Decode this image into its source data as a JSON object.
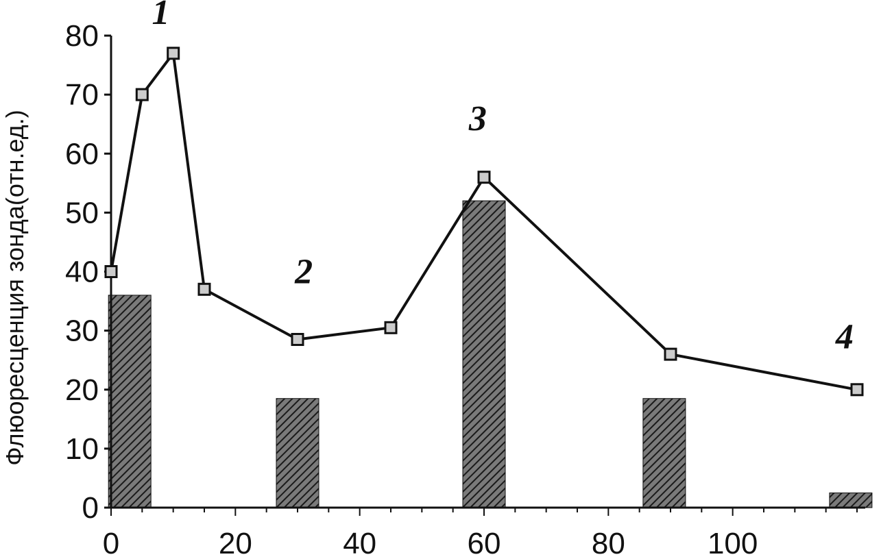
{
  "chart_data": {
    "type": "bar",
    "title": "",
    "xlabel": "",
    "ylabel": "Флюоресценция зонда(отн.ед.)",
    "xlim": [
      0,
      120
    ],
    "ylim": [
      0,
      80
    ],
    "x_ticks": [
      0,
      20,
      40,
      60,
      80,
      100
    ],
    "y_ticks": [
      0,
      10,
      20,
      30,
      40,
      50,
      60,
      70,
      80
    ],
    "grid": false,
    "legend": "none",
    "colors": {
      "ink": "#111111",
      "bar_fill": "#555555",
      "marker_fill": "#cccccc"
    },
    "bars": [
      {
        "x": 3,
        "value": 36
      },
      {
        "x": 30,
        "value": 18.5
      },
      {
        "x": 60,
        "value": 52
      },
      {
        "x": 89,
        "value": 18.5
      },
      {
        "x": 119,
        "value": 2.5
      }
    ],
    "line": {
      "x": [
        0,
        5,
        10,
        15,
        30,
        45,
        60,
        90,
        120
      ],
      "y": [
        40,
        70,
        77,
        37,
        28.5,
        30.5,
        56,
        26,
        20
      ]
    },
    "annotations": [
      {
        "text": "1",
        "x": 8,
        "y": 82
      },
      {
        "text": "2",
        "x": 31,
        "y": 38
      },
      {
        "text": "3",
        "x": 59,
        "y": 64
      },
      {
        "text": "4",
        "x": 118,
        "y": 27
      }
    ]
  }
}
